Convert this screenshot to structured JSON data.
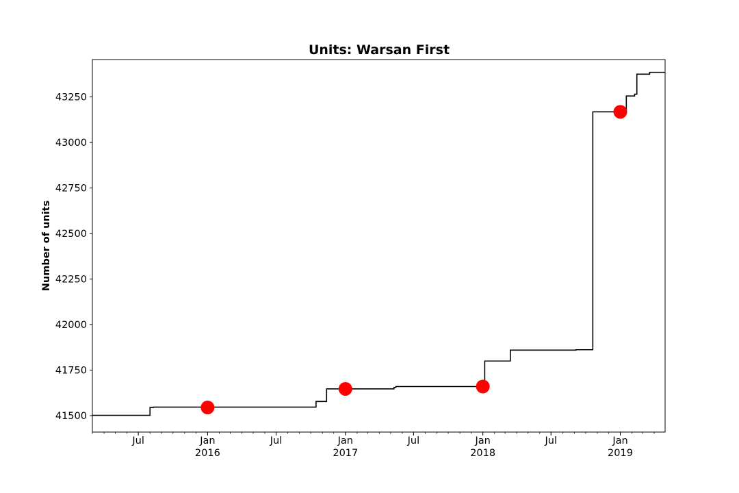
{
  "chart_data": {
    "type": "line",
    "title": "Units: Warsan First",
    "xlabel": "",
    "ylabel": "Number of units",
    "xlim": [
      "2015-03-01",
      "2019-04-30"
    ],
    "ylim": [
      41410,
      43455
    ],
    "grid": false,
    "y_ticks": [
      41500,
      41750,
      42000,
      42250,
      42500,
      42750,
      43000,
      43250
    ],
    "x_ticks": [
      {
        "date": "2015-07-01",
        "label": "Jul",
        "sublabel": ""
      },
      {
        "date": "2016-01-01",
        "label": "Jan",
        "sublabel": "2016"
      },
      {
        "date": "2016-07-01",
        "label": "Jul",
        "sublabel": ""
      },
      {
        "date": "2017-01-01",
        "label": "Jan",
        "sublabel": "2017"
      },
      {
        "date": "2017-07-01",
        "label": "Jul",
        "sublabel": ""
      },
      {
        "date": "2018-01-01",
        "label": "Jan",
        "sublabel": "2018"
      },
      {
        "date": "2018-07-01",
        "label": "Jul",
        "sublabel": ""
      },
      {
        "date": "2019-01-01",
        "label": "Jan",
        "sublabel": "2019"
      }
    ],
    "series": [
      {
        "color": "#000000",
        "step": true,
        "points": [
          {
            "x": "2015-03-01",
            "y": 41502
          },
          {
            "x": "2015-08-01",
            "y": 41545
          },
          {
            "x": "2015-08-10",
            "y": 41547
          },
          {
            "x": "2016-10-15",
            "y": 41578
          },
          {
            "x": "2016-11-12",
            "y": 41647
          },
          {
            "x": "2017-05-10",
            "y": 41655
          },
          {
            "x": "2017-05-15",
            "y": 41660
          },
          {
            "x": "2018-01-06",
            "y": 41800
          },
          {
            "x": "2018-03-15",
            "y": 41860
          },
          {
            "x": "2018-09-05",
            "y": 41862
          },
          {
            "x": "2018-10-20",
            "y": 43168
          },
          {
            "x": "2019-01-17",
            "y": 43255
          },
          {
            "x": "2019-02-08",
            "y": 43265
          },
          {
            "x": "2019-02-14",
            "y": 43375
          },
          {
            "x": "2019-03-20",
            "y": 43385
          },
          {
            "x": "2019-04-30",
            "y": 43385
          }
        ]
      },
      {
        "color": "#ff0000",
        "marker": "circle",
        "points": [
          {
            "x": "2016-01-01",
            "y": 41545
          },
          {
            "x": "2017-01-01",
            "y": 41647
          },
          {
            "x": "2018-01-01",
            "y": 41660
          },
          {
            "x": "2019-01-01",
            "y": 43168
          }
        ]
      }
    ]
  }
}
